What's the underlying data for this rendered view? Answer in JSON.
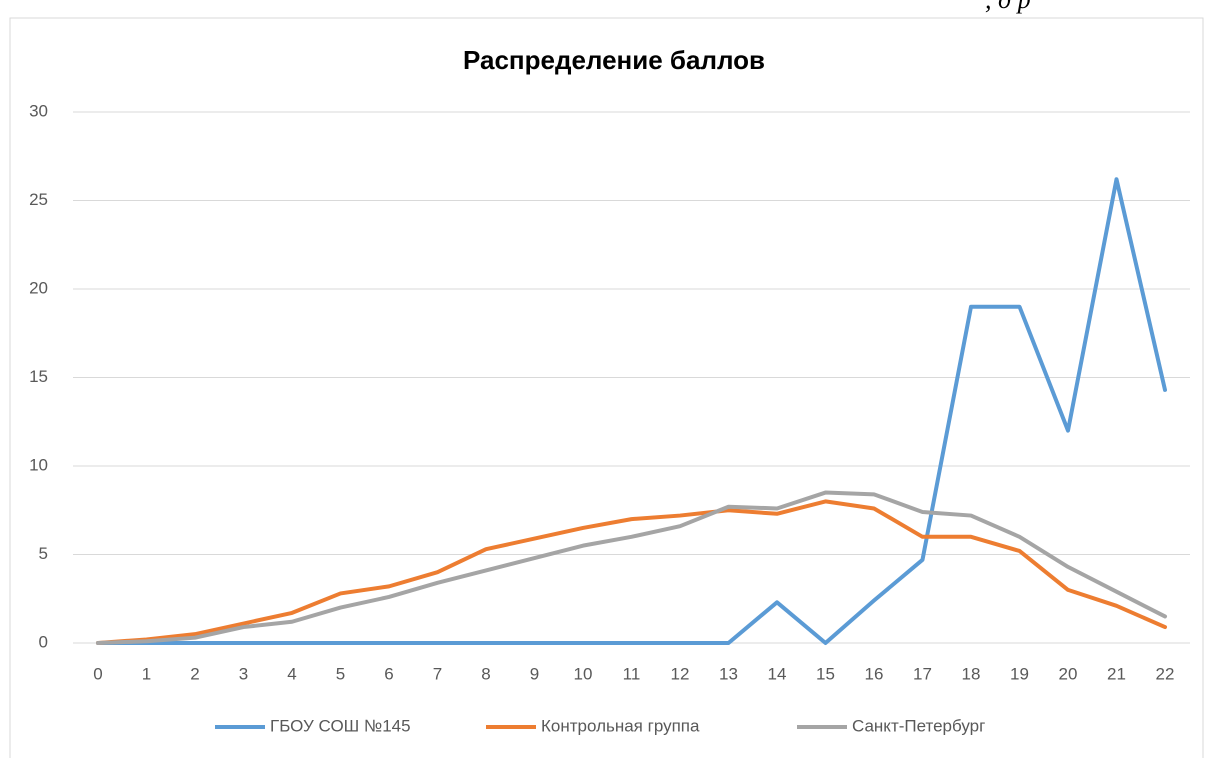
{
  "note": ", д р",
  "chart_data": {
    "type": "line",
    "title": "Распределение баллов",
    "categories": [
      "0",
      "1",
      "2",
      "3",
      "4",
      "5",
      "6",
      "7",
      "8",
      "9",
      "10",
      "11",
      "12",
      "13",
      "14",
      "15",
      "16",
      "17",
      "18",
      "19",
      "20",
      "21",
      "22"
    ],
    "ylim": [
      0,
      30
    ],
    "yticks": [
      0,
      5,
      10,
      15,
      20,
      25,
      30
    ],
    "grid": true,
    "legend": "bottom",
    "series": [
      {
        "name": "ГБОУ СОШ №145",
        "color": "#5b9bd5",
        "values": [
          0,
          0,
          0,
          0,
          0,
          0,
          0,
          0,
          0,
          0,
          0,
          0,
          0,
          0,
          2.3,
          0,
          2.4,
          4.7,
          19,
          19,
          12,
          26.2,
          14.3
        ]
      },
      {
        "name": "Контрольная группа",
        "color": "#ed7d31",
        "values": [
          0,
          0.2,
          0.5,
          1.1,
          1.7,
          2.8,
          3.2,
          4.0,
          5.3,
          5.9,
          6.5,
          7.0,
          7.2,
          7.5,
          7.3,
          8.0,
          7.6,
          6.0,
          6.0,
          5.2,
          3.0,
          2.1,
          0.9
        ]
      },
      {
        "name": "Санкт-Петербург",
        "color": "#a5a5a5",
        "values": [
          0,
          0.1,
          0.3,
          0.9,
          1.2,
          2.0,
          2.6,
          3.4,
          4.1,
          4.8,
          5.5,
          6.0,
          6.6,
          7.7,
          7.6,
          8.5,
          8.4,
          7.4,
          7.2,
          6.0,
          4.3,
          2.9,
          1.5
        ]
      }
    ]
  }
}
